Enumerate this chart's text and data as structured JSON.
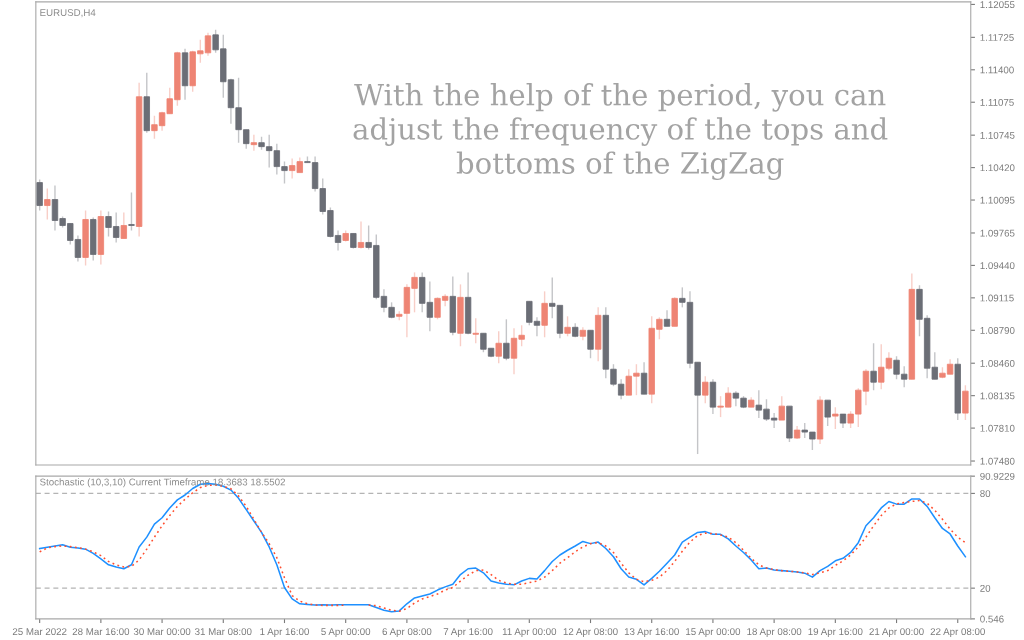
{
  "chart_data": [
    {
      "type": "candlestick",
      "title": "EURUSD,H4",
      "annotations": [
        "With the help of the period, you can\nadjust the frequency of the tops and\nbottoms of the ZigZag"
      ],
      "tick_labels": "y",
      "ohlc": [
        [
          1.1027,
          1.103,
          1.0999,
          1.1004
        ],
        [
          1.1004,
          1.1021,
          1.099,
          1.101
        ],
        [
          1.101,
          1.1024,
          1.0979,
          1.0989
        ],
        [
          1.0991,
          1.0993,
          1.0982,
          1.0984
        ],
        [
          1.0986,
          1.0986,
          1.0965,
          1.0969
        ],
        [
          1.097,
          1.0974,
          1.0948,
          1.0952
        ],
        [
          1.0952,
          1.0999,
          1.0944,
          1.099
        ],
        [
          1.099,
          1.0992,
          1.0949,
          1.0955
        ],
        [
          1.0955,
          1.0999,
          1.0945,
          1.0993
        ],
        [
          1.0993,
          1.0998,
          1.0973,
          1.0982
        ],
        [
          1.0983,
          1.0997,
          1.0967,
          1.0972
        ],
        [
          1.0971,
          1.0997,
          1.0971,
          1.0984
        ],
        [
          1.0985,
          1.1017,
          1.0979,
          1.0984
        ],
        [
          1.0983,
          1.1127,
          1.0973,
          1.1113
        ],
        [
          1.1113,
          1.1137,
          1.1077,
          1.1079
        ],
        [
          1.1079,
          1.1094,
          1.1071,
          1.1085
        ],
        [
          1.1084,
          1.1098,
          1.1079,
          1.1097
        ],
        [
          1.1096,
          1.1122,
          1.1096,
          1.1111
        ],
        [
          1.111,
          1.1158,
          1.1104,
          1.1157
        ],
        [
          1.1157,
          1.1161,
          1.111,
          1.1124
        ],
        [
          1.1124,
          1.1159,
          1.1118,
          1.1158
        ],
        [
          1.1156,
          1.117,
          1.1147,
          1.1159
        ],
        [
          1.1157,
          1.1177,
          1.1154,
          1.1174
        ],
        [
          1.1175,
          1.118,
          1.1157,
          1.116
        ],
        [
          1.1161,
          1.1175,
          1.1112,
          1.1128
        ],
        [
          1.113,
          1.1131,
          1.1086,
          1.1102
        ],
        [
          1.1102,
          1.1132,
          1.1067,
          1.108
        ],
        [
          1.108,
          1.108,
          1.1061,
          1.1066
        ],
        [
          1.1065,
          1.1075,
          1.1059,
          1.1067
        ],
        [
          1.1067,
          1.1073,
          1.106,
          1.1063
        ],
        [
          1.1063,
          1.1075,
          1.1042,
          1.1059
        ],
        [
          1.1059,
          1.1066,
          1.1035,
          1.1043
        ],
        [
          1.1043,
          1.1048,
          1.1026,
          1.1039
        ],
        [
          1.1039,
          1.1051,
          1.1031,
          1.1044
        ],
        [
          1.1037,
          1.1052,
          1.1037,
          1.1048
        ],
        [
          1.1048,
          1.1053,
          1.1047,
          1.1047
        ],
        [
          1.1047,
          1.1053,
          1.1018,
          1.1021
        ],
        [
          1.1021,
          1.1031,
          1.0995,
          1.0998
        ],
        [
          1.0999,
          1.1002,
          1.0972,
          1.0973
        ],
        [
          1.0974,
          1.0979,
          1.0959,
          1.0967
        ],
        [
          1.0969,
          1.0979,
          1.0968,
          1.0976
        ],
        [
          1.0976,
          1.0976,
          1.0961,
          1.0962
        ],
        [
          1.0962,
          1.0988,
          1.0961,
          1.0967
        ],
        [
          1.0967,
          1.0984,
          1.096,
          1.0962
        ],
        [
          1.0964,
          1.0975,
          1.091,
          1.0912
        ],
        [
          1.0913,
          1.092,
          1.0897,
          1.0902
        ],
        [
          1.0902,
          1.0907,
          1.0891,
          1.0892
        ],
        [
          1.0893,
          1.0898,
          1.0889,
          1.0895
        ],
        [
          1.0896,
          1.0925,
          1.0872,
          1.0922
        ],
        [
          1.0921,
          1.0937,
          1.0897,
          1.0932
        ],
        [
          1.0932,
          1.0937,
          1.0897,
          1.0906
        ],
        [
          1.0907,
          1.0928,
          1.0878,
          1.0892
        ],
        [
          1.0892,
          1.0912,
          1.089,
          1.0911
        ],
        [
          1.0909,
          1.0915,
          1.0903,
          1.0913
        ],
        [
          1.0913,
          1.0933,
          1.0874,
          1.0877
        ],
        [
          1.0876,
          1.0925,
          1.0863,
          1.0912
        ],
        [
          1.0912,
          1.0937,
          1.0875,
          1.0876
        ],
        [
          1.0875,
          1.0891,
          1.0866,
          1.0876
        ],
        [
          1.0876,
          1.0876,
          1.0857,
          1.086
        ],
        [
          1.0861,
          1.0861,
          1.0852,
          1.0853
        ],
        [
          1.0853,
          1.0878,
          1.0846,
          1.0866
        ],
        [
          1.0866,
          1.089,
          1.0849,
          1.0851
        ],
        [
          1.0851,
          1.0881,
          1.0835,
          1.0871
        ],
        [
          1.087,
          1.0884,
          1.0863,
          1.0874
        ],
        [
          1.0908,
          1.0908,
          1.0884,
          1.0887
        ],
        [
          1.0888,
          1.0892,
          1.0873,
          1.0884
        ],
        [
          1.0884,
          1.0918,
          1.0872,
          1.0906
        ],
        [
          1.0906,
          1.0932,
          1.0891,
          1.0903
        ],
        [
          1.0904,
          1.0904,
          1.0871,
          1.0876
        ],
        [
          1.0876,
          1.0893,
          1.0873,
          1.0882
        ],
        [
          1.0882,
          1.0886,
          1.0872,
          1.0873
        ],
        [
          1.0873,
          1.0882,
          1.0869,
          1.0879
        ],
        [
          1.0879,
          1.0879,
          1.0851,
          1.086
        ],
        [
          1.086,
          1.0902,
          1.0848,
          1.0894
        ],
        [
          1.0894,
          1.0902,
          1.0831,
          1.084
        ],
        [
          1.084,
          1.0845,
          1.0823,
          1.0825
        ],
        [
          1.0825,
          1.083,
          1.081,
          1.0814
        ],
        [
          1.0814,
          1.084,
          1.0814,
          1.0833
        ],
        [
          1.0833,
          1.0845,
          1.0814,
          1.0836
        ],
        [
          1.0836,
          1.0847,
          1.0815,
          1.0815
        ],
        [
          1.0815,
          1.0893,
          1.0806,
          1.0881
        ],
        [
          1.088,
          1.0892,
          1.087,
          1.089
        ],
        [
          1.089,
          1.0899,
          1.0883,
          1.0883
        ],
        [
          1.0883,
          1.0912,
          1.0883,
          1.0911
        ],
        [
          1.0911,
          1.0922,
          1.0902,
          1.0907
        ],
        [
          1.0907,
          1.0918,
          1.0841,
          1.0846
        ],
        [
          1.0847,
          1.0847,
          1.0755,
          1.0814
        ],
        [
          1.0814,
          1.0833,
          1.0806,
          1.0827
        ],
        [
          1.0827,
          1.083,
          1.0795,
          1.0802
        ],
        [
          1.0802,
          1.0813,
          1.0792,
          1.0803
        ],
        [
          1.0802,
          1.0822,
          1.0802,
          1.0816
        ],
        [
          1.0816,
          1.0818,
          1.0803,
          1.0811
        ],
        [
          1.0811,
          1.0813,
          1.0801,
          1.0802
        ],
        [
          1.0802,
          1.0812,
          1.0802,
          1.0809
        ],
        [
          1.0804,
          1.0819,
          1.0791,
          1.0799
        ],
        [
          1.08,
          1.081,
          1.0788,
          1.079
        ],
        [
          1.0791,
          1.0796,
          1.0781,
          1.0789
        ],
        [
          1.0789,
          1.0813,
          1.0789,
          1.0803
        ],
        [
          1.0803,
          1.0803,
          1.0767,
          1.0771
        ],
        [
          1.0771,
          1.0783,
          1.077,
          1.0779
        ],
        [
          1.0779,
          1.0786,
          1.0771,
          1.0777
        ],
        [
          1.0777,
          1.0777,
          1.0759,
          1.077
        ],
        [
          1.077,
          1.0813,
          1.0765,
          1.0809
        ],
        [
          1.0809,
          1.0809,
          1.0783,
          1.0792
        ],
        [
          1.0793,
          1.0802,
          1.078,
          1.0795
        ],
        [
          1.0795,
          1.0795,
          1.0781,
          1.0786
        ],
        [
          1.0786,
          1.0798,
          1.0781,
          1.0795
        ],
        [
          1.0795,
          1.0821,
          1.0782,
          1.0819
        ],
        [
          1.0818,
          1.084,
          1.0804,
          1.0838
        ],
        [
          1.0838,
          1.0866,
          1.0819,
          1.0827
        ],
        [
          1.0827,
          1.0865,
          1.082,
          1.0842
        ],
        [
          1.0841,
          1.0857,
          1.0839,
          1.0851
        ],
        [
          1.0849,
          1.0853,
          1.083,
          1.0835
        ],
        [
          1.0835,
          1.0843,
          1.0822,
          1.083
        ],
        [
          1.083,
          1.0936,
          1.083,
          1.092
        ],
        [
          1.092,
          1.0924,
          1.0873,
          1.089
        ],
        [
          1.0891,
          1.0894,
          1.0831,
          1.0841
        ],
        [
          1.0842,
          1.0857,
          1.083,
          1.083
        ],
        [
          1.0832,
          1.0842,
          1.0831,
          1.0836
        ],
        [
          1.0835,
          1.085,
          1.0835,
          1.0845
        ],
        [
          1.0845,
          1.0851,
          1.0789,
          1.0796
        ],
        [
          1.0796,
          1.0824,
          1.0789,
          1.0818
        ]
      ],
      "colors": [
        "#6b6e76",
        "#ee8474",
        "#6b6e76",
        "#6b6e76",
        "#6b6e76",
        "#6b6e76",
        "#ee8474",
        "#6b6e76",
        "#ee8474",
        "#6b6e76",
        "#6b6e76",
        "#ee8474",
        "#6b6e76",
        "#ee8474",
        "#6b6e76",
        "#ee8474",
        "#ee8474",
        "#ee8474",
        "#ee8474",
        "#6b6e76",
        "#ee8474",
        "#ee8474",
        "#ee8474",
        "#6b6e76",
        "#6b6e76",
        "#6b6e76",
        "#6b6e76",
        "#6b6e76",
        "#ee8474",
        "#6b6e76",
        "#6b6e76",
        "#6b6e76",
        "#6b6e76",
        "#ee8474",
        "#ee8474",
        "#6b6e76",
        "#6b6e76",
        "#6b6e76",
        "#6b6e76",
        "#6b6e76",
        "#ee8474",
        "#6b6e76",
        "#ee8474",
        "#6b6e76",
        "#6b6e76",
        "#6b6e76",
        "#6b6e76",
        "#ee8474",
        "#ee8474",
        "#ee8474",
        "#6b6e76",
        "#6b6e76",
        "#ee8474",
        "#ee8474",
        "#6b6e76",
        "#ee8474",
        "#6b6e76",
        "#ee8474",
        "#6b6e76",
        "#6b6e76",
        "#ee8474",
        "#6b6e76",
        "#ee8474",
        "#ee8474",
        "#6b6e76",
        "#6b6e76",
        "#ee8474",
        "#6b6e76",
        "#6b6e76",
        "#ee8474",
        "#6b6e76",
        "#ee8474",
        "#6b6e76",
        "#ee8474",
        "#6b6e76",
        "#6b6e76",
        "#6b6e76",
        "#ee8474",
        "#ee8474",
        "#6b6e76",
        "#ee8474",
        "#ee8474",
        "#6b6e76",
        "#ee8474",
        "#6b6e76",
        "#6b6e76",
        "#6b6e76",
        "#ee8474",
        "#6b6e76",
        "#ee8474",
        "#ee8474",
        "#6b6e76",
        "#6b6e76",
        "#ee8474",
        "#6b6e76",
        "#6b6e76",
        "#6b6e76",
        "#ee8474",
        "#6b6e76",
        "#ee8474",
        "#6b6e76",
        "#6b6e76",
        "#ee8474",
        "#6b6e76",
        "#ee8474",
        "#6b6e76",
        "#ee8474",
        "#ee8474",
        "#ee8474",
        "#6b6e76",
        "#ee8474",
        "#ee8474",
        "#6b6e76",
        "#6b6e76",
        "#ee8474",
        "#6b6e76",
        "#6b6e76",
        "#6b6e76",
        "#ee8474",
        "#ee8474",
        "#6b6e76",
        "#ee8474"
      ],
      "ylim": [
        1.0744,
        1.1208
      ],
      "yticks": [
        1.12055,
        {
          "value": 1.11725,
          "label": "1.11725"
        },
        {
          "value": 1.114,
          "label": "1.11400"
        },
        1.11075,
        1.10745,
        {
          "value": 1.1042,
          "label": "1.10420"
        },
        1.10095,
        1.09765,
        {
          "value": 1.0944,
          "label": "1.09440"
        },
        1.09115,
        {
          "value": 1.0879,
          "label": "1.08790"
        },
        {
          "value": 1.0846,
          "label": "1.08460"
        },
        1.08135,
        {
          "value": 1.0781,
          "label": "1.07810"
        },
        {
          "value": 1.0748,
          "label": "1.07480"
        }
      ]
    },
    {
      "type": "line",
      "title": "Stochastic (10,3,10) Current Timeframe 18.3683 18.5502",
      "categories": [
        "25 Mar 2022",
        null,
        null,
        null,
        null,
        null,
        null,
        null,
        "28 Mar 16:00",
        null,
        null,
        null,
        null,
        null,
        null,
        null,
        "30 Mar 00:00",
        null,
        null,
        null,
        null,
        null,
        null,
        null,
        "31 Mar 08:00",
        null,
        null,
        null,
        null,
        null,
        null,
        null,
        "1 Apr 16:00",
        null,
        null,
        null,
        null,
        null,
        null,
        null,
        "5 Apr 00:00",
        null,
        null,
        null,
        null,
        null,
        null,
        null,
        "6 Apr 08:00",
        null,
        null,
        null,
        null,
        null,
        null,
        null,
        "7 Apr 16:00",
        null,
        null,
        null,
        null,
        null,
        null,
        null,
        "11 Apr 00:00",
        null,
        null,
        null,
        null,
        null,
        null,
        null,
        "12 Apr 08:00",
        null,
        null,
        null,
        null,
        null,
        null,
        null,
        "13 Apr 16:00",
        null,
        null,
        null,
        null,
        null,
        null,
        null,
        "15 Apr 00:00",
        null,
        null,
        null,
        null,
        null,
        null,
        null,
        "18 Apr 08:00",
        null,
        null,
        null,
        null,
        null,
        null,
        null,
        "19 Apr 16:00",
        null,
        null,
        null,
        null,
        null,
        null,
        null,
        "21 Apr 00:00",
        null,
        null,
        null,
        null,
        null,
        null,
        null,
        "22 Apr 08:00",
        null
      ],
      "series": [
        {
          "color": "#1e90ff",
          "line_style": "solid",
          "values": [
            45.1,
            45.9,
            46.7,
            47.5,
            45.9,
            45.5,
            44.7,
            42.0,
            38.5,
            34.8,
            33.4,
            32.3,
            34.8,
            46.1,
            52.3,
            60.5,
            64.6,
            70.8,
            75.9,
            79.0,
            83.1,
            85.8,
            86.2,
            85.8,
            84.5,
            82.1,
            76.9,
            69.7,
            62.5,
            55.3,
            46.1,
            34.8,
            20.4,
            13.2,
            10.1,
            9.7,
            9.3,
            9.5,
            9.3,
            9.5,
            9.5,
            9.5,
            9.5,
            9.5,
            7.7,
            6.0,
            5.0,
            5.6,
            10.1,
            13.8,
            15.1,
            16.3,
            18.8,
            20.8,
            22.5,
            28.6,
            32.3,
            32.7,
            29.7,
            24.5,
            23.3,
            22.5,
            22.1,
            24.5,
            26.2,
            25.8,
            31.1,
            36.9,
            41.0,
            44.0,
            46.7,
            49.6,
            48.2,
            49.2,
            45.1,
            39.9,
            32.3,
            27.0,
            25.6,
            22.1,
            26.2,
            30.7,
            35.8,
            41.0,
            49.2,
            52.3,
            55.3,
            55.8,
            54.1,
            54.1,
            51.2,
            46.7,
            42.6,
            37.9,
            32.3,
            32.7,
            31.5,
            31.1,
            30.7,
            30.3,
            29.5,
            27.0,
            31.1,
            33.8,
            37.3,
            38.9,
            42.6,
            48.8,
            59.5,
            64.6,
            70.8,
            74.9,
            73.2,
            73.2,
            76.5,
            76.5,
            71.8,
            64.6,
            57.8,
            54.3,
            46.7,
            39.9
          ]
        },
        {
          "color": "#ff4d2e",
          "line_style": "dotted",
          "values": [
            43.0,
            45.5,
            46.3,
            46.7,
            46.3,
            45.7,
            44.7,
            43.0,
            40.6,
            36.9,
            34.8,
            33.4,
            33.8,
            37.9,
            44.7,
            52.3,
            59.5,
            66.0,
            71.8,
            76.3,
            80.4,
            83.7,
            85.1,
            85.3,
            84.5,
            82.9,
            78.4,
            71.8,
            63.6,
            55.3,
            48.2,
            39.3,
            26.6,
            15.3,
            11.8,
            10.1,
            9.3,
            9.1,
            9.1,
            9.1,
            9.3,
            null,
            null,
            9.3,
            8.9,
            7.5,
            6.0,
            5.4,
            7.1,
            10.6,
            13.2,
            14.7,
            16.3,
            18.8,
            20.4,
            24.5,
            28.2,
            31.1,
            31.5,
            28.6,
            24.9,
            23.3,
            22.5,
            22.5,
            23.5,
            24.5,
            27.0,
            31.1,
            35.8,
            39.3,
            43.0,
            46.1,
            48.2,
            48.8,
            46.7,
            42.6,
            35.8,
            29.7,
            25.6,
            24.1,
            24.9,
            27.0,
            31.1,
            36.9,
            43.4,
            49.2,
            53.3,
            54.9,
            54.5,
            53.7,
            52.3,
            48.8,
            44.0,
            38.9,
            34.8,
            32.7,
            31.7,
            31.1,
            30.7,
            30.3,
            29.7,
            28.6,
            29.7,
            31.1,
            34.4,
            37.3,
            41.0,
            46.1,
            52.3,
            59.5,
            66.0,
            70.8,
            73.4,
            74.2,
            74.9,
            75.5,
            73.8,
            69.3,
            63.6,
            57.4,
            52.3,
            48.8
          ]
        }
      ],
      "ylim": [
        0.546,
        90.9229
      ],
      "yticks": [
        90.9229,
        80,
        20,
        0.546
      ],
      "ref_lines": [
        {
          "axis": "y",
          "value": 80,
          "color": "#b4b4b4",
          "line_style": "dashed"
        },
        {
          "axis": "y",
          "value": 20,
          "color": "#b4b4b4",
          "line_style": "dashed"
        }
      ]
    }
  ]
}
